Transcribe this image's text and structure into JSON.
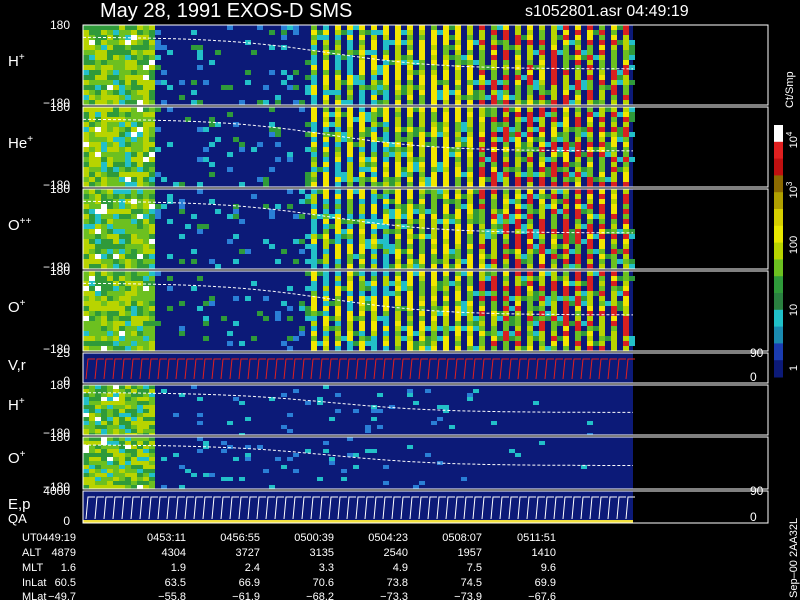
{
  "header": {
    "title": "May 28, 1991   EXOS-D SMS",
    "file_time": "s1052801.asr  04:49:19"
  },
  "panels": [
    {
      "label": "H",
      "sup": "+",
      "top": "180",
      "bottom": "−180"
    },
    {
      "label": "He",
      "sup": "+",
      "top": "180",
      "bottom": "−180"
    },
    {
      "label": "O",
      "sup": "++",
      "top": "180",
      "bottom": "−180"
    },
    {
      "label": "O",
      "sup": "+",
      "top": "180",
      "bottom": "−180"
    },
    {
      "label": "V,r",
      "top": "25",
      "bottom": "0",
      "right": [
        "90",
        "0"
      ]
    },
    {
      "label": "H",
      "sup": "+",
      "top": "180",
      "bottom": "−180"
    },
    {
      "label": "O",
      "sup": "+",
      "top": "180",
      "bottom": "−180"
    },
    {
      "label": "E,p",
      "label2": "QA",
      "top": "4000",
      "bottom": "0",
      "right": [
        "90",
        "0"
      ]
    }
  ],
  "colorbar": {
    "unit": "Ct/Smp",
    "ticks": [
      {
        "base": "10",
        "exp": "4"
      },
      {
        "base": "10",
        "exp": "3"
      },
      {
        "base": "100"
      },
      {
        "base": "10"
      },
      {
        "base": "1"
      }
    ]
  },
  "side_note": "Sep–00  2AA32L",
  "footer": {
    "labels": [
      "UT",
      "ALT",
      "MLT",
      "InLat",
      "MLat"
    ],
    "rows": [
      [
        "0449:19",
        "0453:11",
        "0456:55",
        "0500:39",
        "0504:23",
        "0508:07",
        "0511:51"
      ],
      [
        "4879",
        "4304",
        "3727",
        "3135",
        "2540",
        "1957",
        "1410"
      ],
      [
        "1.6",
        "1.9",
        "2.4",
        "3.3",
        "4.9",
        "7.5",
        "9.6"
      ],
      [
        "60.5",
        "63.5",
        "66.9",
        "70.6",
        "73.8",
        "74.5",
        "69.9"
      ],
      [
        "−49.7",
        "−55.8",
        "−61.9",
        "−68.2",
        "−73.3",
        "−73.9",
        "−67.6"
      ]
    ]
  }
}
